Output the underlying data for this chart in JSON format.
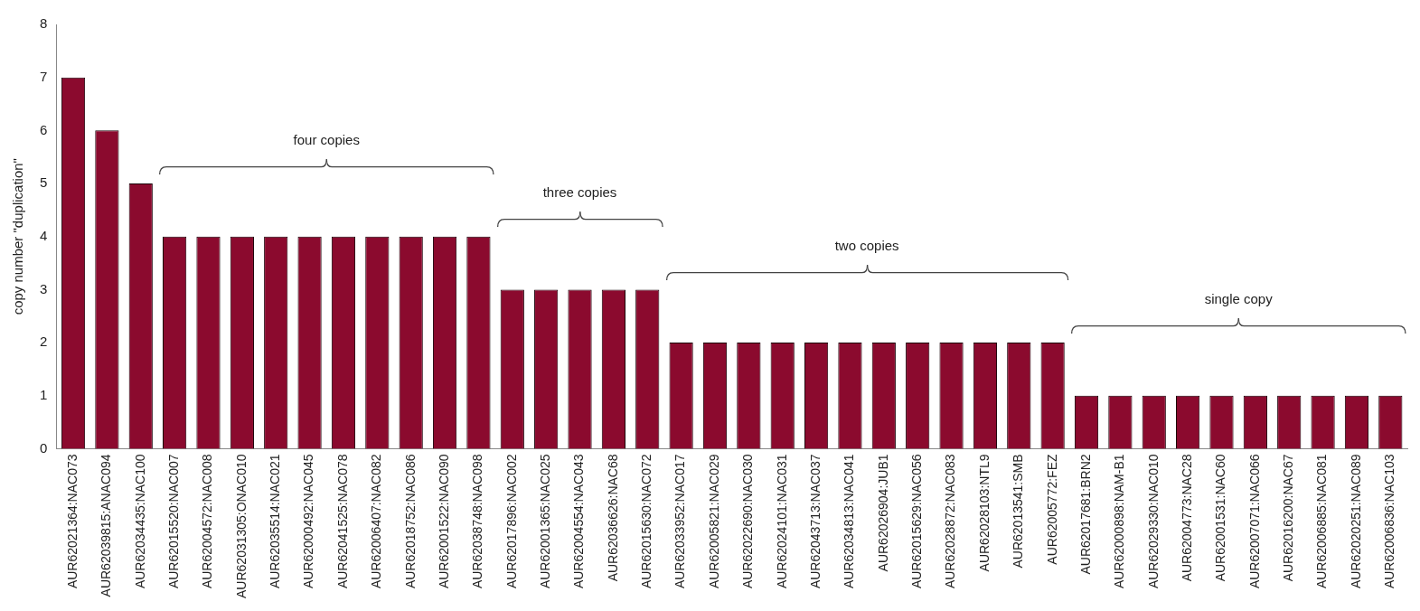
{
  "chart_data": {
    "type": "bar",
    "ylabel": "copy number \"duplication\"",
    "categories": [
      "AUR62021364:NAC073",
      "AUR62039815:ANAC094",
      "AUR62034435:NAC100",
      "AUR62015520:NAC007",
      "AUR62004572:NAC008",
      "AUR62031305:ONAC010",
      "AUR62035514:NAC021",
      "AUR62000492:NAC045",
      "AUR62041525:NAC078",
      "AUR62006407:NAC082",
      "AUR62018752:NAC086",
      "AUR62001522:NAC090",
      "AUR62038748:NAC098",
      "AUR62017896:NAC002",
      "AUR62001365:NAC025",
      "AUR62004554:NAC043",
      "AUR62036626:NAC68",
      "AUR62015630:NAC072",
      "AUR62033952:NAC017",
      "AUR62005821:NAC029",
      "AUR62022690:NAC030",
      "AUR62024101:NAC031",
      "AUR62043713:NAC037",
      "AUR62034813:NAC041",
      "AUR62026904:JUB1",
      "AUR62015629:NAC056",
      "AUR62028872:NAC083",
      "AUR62028103:NTL9",
      "AUR62013541:SMB",
      "AUR62005772:FEZ",
      "AUR62017681:BRN2",
      "AUR62000898:NAM-B1",
      "AUR62029330:NAC010",
      "AUR62004773:NAC28",
      "AUR62001531:NAC60",
      "AUR62007071:NAC066",
      "AUR62016200:NAC67",
      "AUR62006885:NAC081",
      "AUR62020251:NAC089",
      "AUR62006836:NAC103"
    ],
    "values": [
      7,
      6,
      5,
      4,
      4,
      4,
      4,
      4,
      4,
      4,
      4,
      4,
      4,
      3,
      3,
      3,
      3,
      3,
      2,
      2,
      2,
      2,
      2,
      2,
      2,
      2,
      2,
      2,
      2,
      2,
      1,
      1,
      1,
      1,
      1,
      1,
      1,
      1,
      1,
      1
    ],
    "color": "#8b0a2e",
    "ylim": [
      0,
      8
    ],
    "yticks": [
      0,
      1,
      2,
      3,
      4,
      5,
      6,
      7,
      8
    ],
    "grid": false,
    "annotations": [
      "four copies",
      "three copies",
      "two copies",
      "single copy"
    ]
  }
}
